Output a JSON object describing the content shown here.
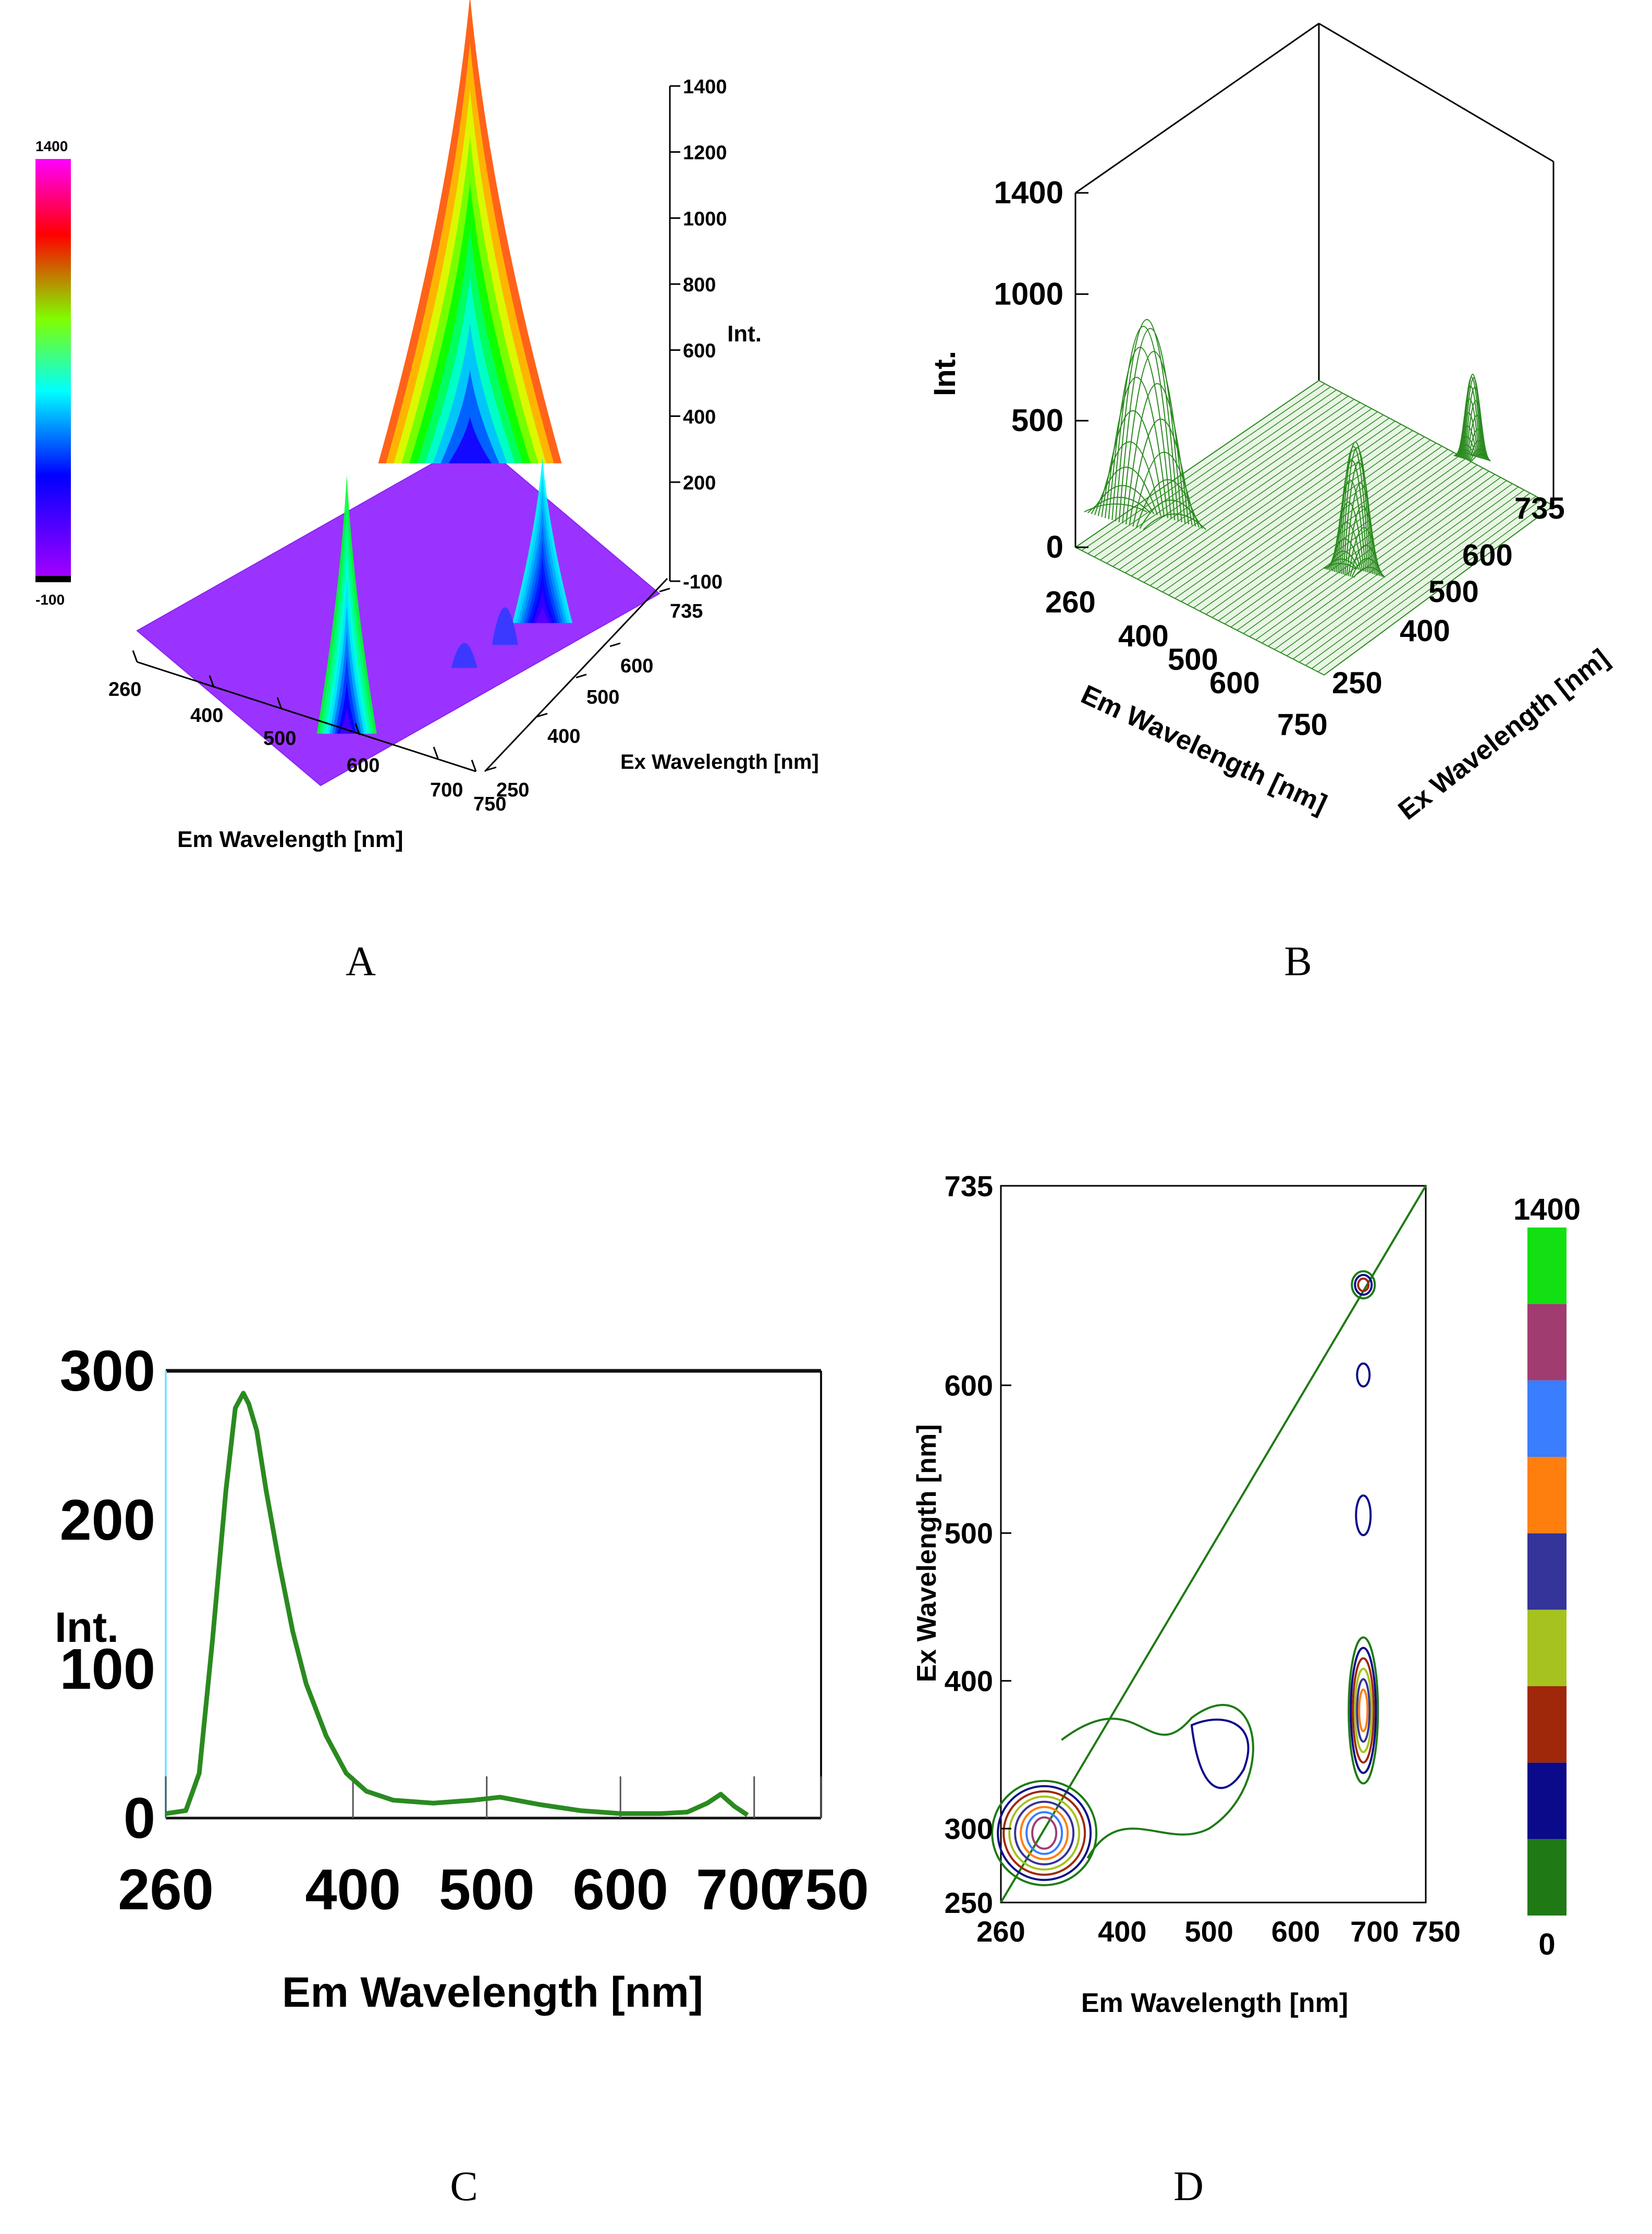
{
  "panel_labels": {
    "a": "A",
    "b": "B",
    "c": "C",
    "d": "D"
  },
  "colors": {
    "green": "#2a8a1f",
    "violet": "#b24cff",
    "dark_green": "#1f7a16"
  },
  "chart_data": [
    {
      "id": "A",
      "type": "surface3d",
      "xlabel": "Em Wavelength [nm]",
      "ylabel": "Ex Wavelength [nm]",
      "zlabel": "Int.",
      "x_ticks": [
        "260",
        "400",
        "500",
        "600",
        "700",
        "750"
      ],
      "y_ticks": [
        "250",
        "400",
        "500",
        "600",
        "735"
      ],
      "z_ticks": [
        "-100",
        "200",
        "400",
        "600",
        "800",
        "1000",
        "1200",
        "1400"
      ],
      "colorbar": {
        "max": "1400",
        "min": "-100"
      },
      "peaks": [
        {
          "em": 300,
          "ex": 280,
          "int": 1300
        },
        {
          "em": 680,
          "ex": 380,
          "int": 460
        },
        {
          "em": 680,
          "ex": 660,
          "int": 720
        }
      ]
    },
    {
      "id": "B",
      "type": "surface3d",
      "xlabel": "Em Wavelength [nm]",
      "ylabel": "Ex Wavelength [nm]",
      "zlabel": "Int.",
      "x_ticks": [
        "260",
        "400",
        "500",
        "600",
        "750"
      ],
      "y_ticks": [
        "250",
        "400",
        "500",
        "600",
        "735"
      ],
      "z_ticks": [
        "0",
        "500",
        "1000",
        "1400"
      ],
      "peaks": [
        {
          "em": 300,
          "ex": 280,
          "int": 1300
        },
        {
          "em": 680,
          "ex": 380,
          "int": 480
        },
        {
          "em": 680,
          "ex": 660,
          "int": 720
        }
      ]
    },
    {
      "id": "C",
      "type": "line",
      "xlabel": "Em Wavelength [nm]",
      "ylabel": "Int.",
      "x_ticks": [
        "260",
        "400",
        "500",
        "600",
        "700",
        "750"
      ],
      "y_ticks": [
        "0",
        "100",
        "200",
        "300"
      ],
      "xlim": [
        260,
        750
      ],
      "ylim": [
        0,
        300
      ],
      "series": [
        {
          "x": [
            260,
            275,
            285,
            295,
            305,
            312,
            318,
            322,
            328,
            335,
            345,
            355,
            365,
            380,
            395,
            410,
            430,
            460,
            490,
            510,
            540,
            570,
            600,
            630,
            650,
            665,
            675,
            685,
            695
          ],
          "y": [
            3,
            5,
            30,
            120,
            220,
            275,
            285,
            278,
            260,
            220,
            170,
            125,
            90,
            55,
            30,
            18,
            12,
            10,
            12,
            14,
            9,
            5,
            3,
            3,
            4,
            10,
            16,
            8,
            2
          ]
        }
      ]
    },
    {
      "id": "D",
      "type": "contour",
      "xlabel": "Em Wavelength [nm]",
      "ylabel": "Ex Wavelength [nm]",
      "x_ticks": [
        "260",
        "400",
        "500",
        "600",
        "700",
        "750"
      ],
      "y_ticks": [
        "250",
        "300",
        "400",
        "500",
        "600",
        "735"
      ],
      "xlim": [
        260,
        750
      ],
      "ylim": [
        250,
        735
      ],
      "colorbar": {
        "max": "1400",
        "min": "0",
        "colors": [
          "#1f7a16",
          "#0a0a8a",
          "#a0280a",
          "#a6c21e",
          "#34349a",
          "#ff7f0e",
          "#3a7dff",
          "#a03c70",
          "#12e012"
        ]
      }
    }
  ]
}
